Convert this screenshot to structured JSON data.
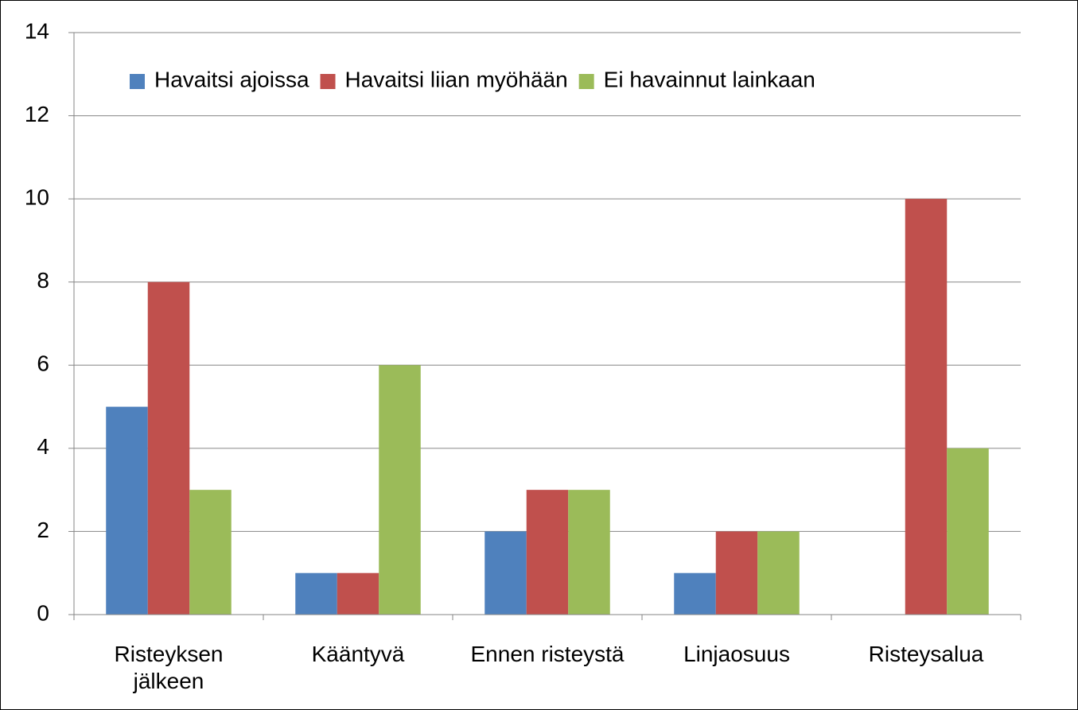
{
  "chart_data": {
    "type": "bar",
    "categories": [
      "Risteyksen jälkeen",
      "Kääntyvä",
      "Ennen risteystä",
      "Linjaosuus",
      "Risteysalua"
    ],
    "series": [
      {
        "name": "Havaitsi ajoissa",
        "color": "#4f81bd",
        "values": [
          5,
          1,
          2,
          1,
          0
        ]
      },
      {
        "name": "Havaitsi liian myöhään",
        "color": "#c0504d",
        "values": [
          8,
          1,
          3,
          2,
          10
        ]
      },
      {
        "name": "Ei havainnut lainkaan",
        "color": "#9bbb59",
        "values": [
          3,
          6,
          3,
          2,
          4
        ]
      }
    ],
    "ylim": [
      0,
      14
    ],
    "yticks": [
      0,
      2,
      4,
      6,
      8,
      10,
      12,
      14
    ],
    "grid": true,
    "legend": "top"
  }
}
